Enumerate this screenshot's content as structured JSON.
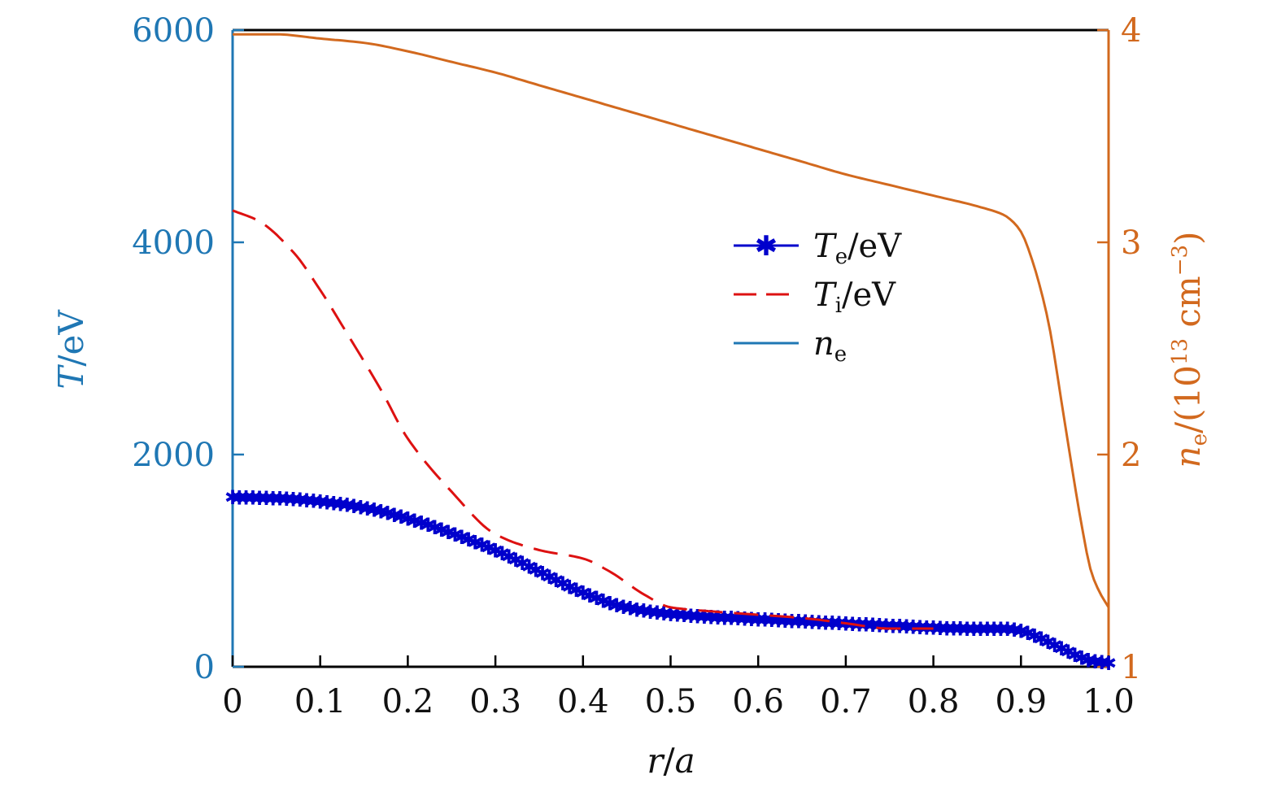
{
  "chart_data": {
    "type": "line",
    "xlabel": {
      "var1": "r",
      "sep": "/",
      "var2": "a"
    },
    "ylabel_left": {
      "var": "T",
      "unit": "/eV"
    },
    "ylabel_right": {
      "var": "n",
      "sub": "e",
      "unit_pre": "/(10",
      "exp": "13",
      "unit_mid": " cm",
      "exp2": "−3",
      "unit_post": ")"
    },
    "xlim": [
      0,
      1.0
    ],
    "ylim_left": [
      0,
      6000
    ],
    "ylim_right": [
      1,
      4
    ],
    "x_ticks": [
      "0",
      "0.1",
      "0.2",
      "0.3",
      "0.4",
      "0.5",
      "0.6",
      "0.7",
      "0.8",
      "0.9",
      "1.0"
    ],
    "x_tick_values": [
      0,
      0.1,
      0.2,
      0.3,
      0.4,
      0.5,
      0.6,
      0.7,
      0.8,
      0.9,
      1.0
    ],
    "y_ticks_left": [
      "0",
      "2000",
      "4000",
      "6000"
    ],
    "y_tick_values_left": [
      0,
      2000,
      4000,
      6000
    ],
    "y_ticks_right": [
      "1",
      "2",
      "3",
      "4"
    ],
    "y_tick_values_right": [
      1,
      2,
      3,
      4
    ],
    "colors": {
      "left_axis": "#1f77b4",
      "right_axis": "#d2691e",
      "te": "#0000cc",
      "ti": "#dd1111",
      "ne_legend": "#1f77b4",
      "ne_line": "#d2691e"
    },
    "legend_position": "upper-center-right",
    "series": [
      {
        "name": "Te/eV",
        "label_var": "T",
        "label_sub": "e",
        "label_unit": "/eV",
        "axis": "left",
        "x": [
          0,
          0.05,
          0.1,
          0.15,
          0.2,
          0.25,
          0.3,
          0.35,
          0.4,
          0.45,
          0.5,
          0.55,
          0.6,
          0.65,
          0.7,
          0.75,
          0.8,
          0.85,
          0.88,
          0.9,
          0.92,
          0.95,
          0.98,
          1.0
        ],
        "y": [
          1600,
          1590,
          1560,
          1500,
          1400,
          1260,
          1100,
          900,
          700,
          560,
          500,
          470,
          450,
          430,
          410,
          390,
          370,
          360,
          360,
          340,
          280,
          160,
          60,
          40
        ]
      },
      {
        "name": "Ti/eV",
        "label_var": "T",
        "label_sub": "i",
        "label_unit": "/eV",
        "axis": "left",
        "x": [
          0,
          0.03,
          0.07,
          0.1,
          0.13,
          0.17,
          0.2,
          0.25,
          0.3,
          0.35,
          0.4,
          0.43,
          0.47,
          0.5,
          0.55,
          0.6,
          0.65,
          0.7,
          0.75,
          0.8
        ],
        "y": [
          4300,
          4200,
          3900,
          3550,
          3150,
          2600,
          2150,
          1650,
          1250,
          1100,
          1020,
          900,
          680,
          560,
          520,
          490,
          460,
          410,
          360,
          360
        ]
      },
      {
        "name": "ne",
        "label_var": "n",
        "label_sub": "e",
        "label_unit": "",
        "axis": "right",
        "x": [
          0,
          0.05,
          0.1,
          0.15,
          0.2,
          0.25,
          0.3,
          0.35,
          0.4,
          0.45,
          0.5,
          0.55,
          0.6,
          0.65,
          0.7,
          0.75,
          0.8,
          0.85,
          0.88,
          0.89,
          0.9,
          0.91,
          0.93,
          0.95,
          0.97,
          0.98,
          0.99,
          1.0
        ],
        "y": [
          3.98,
          3.98,
          3.96,
          3.94,
          3.9,
          3.85,
          3.8,
          3.74,
          3.68,
          3.62,
          3.56,
          3.5,
          3.44,
          3.38,
          3.32,
          3.27,
          3.22,
          3.17,
          3.13,
          3.1,
          3.05,
          2.95,
          2.65,
          2.15,
          1.65,
          1.45,
          1.35,
          1.28
        ]
      }
    ]
  }
}
